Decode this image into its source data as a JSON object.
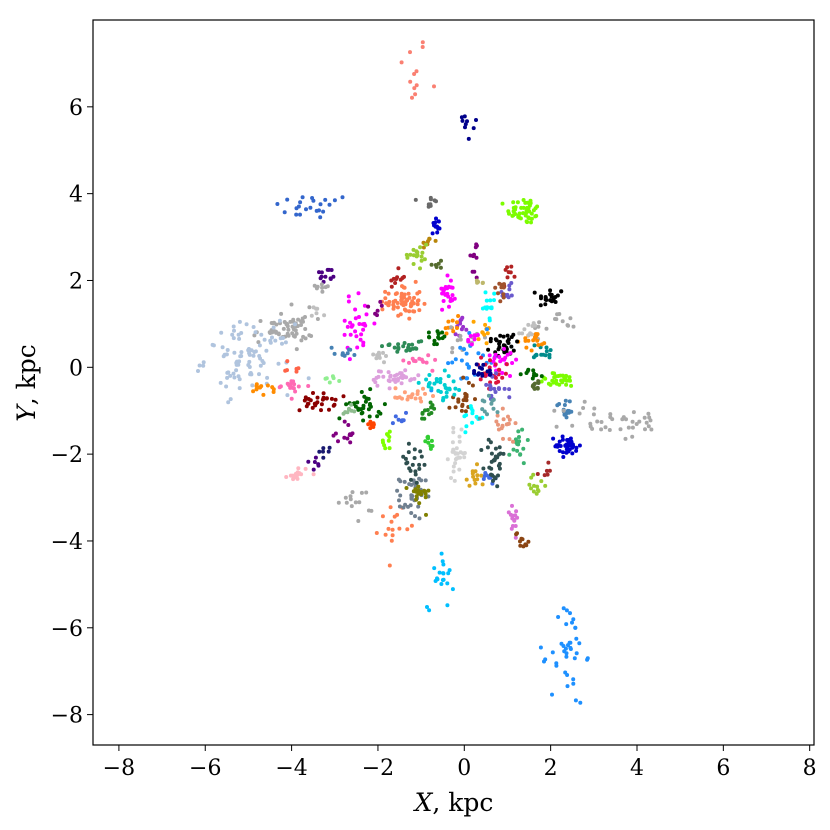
{
  "chart_data": {
    "type": "scatter",
    "title": "",
    "xlabel": {
      "var": "X",
      "unit": ", kpc"
    },
    "ylabel": {
      "var": "Y",
      "unit": ", kpc"
    },
    "xlim": [
      -8.6,
      8.1
    ],
    "ylim": [
      -8.7,
      8.0
    ],
    "xticks": [
      -8,
      -6,
      -4,
      -2,
      0,
      2,
      4,
      6,
      8
    ],
    "yticks": [
      -8,
      -6,
      -4,
      -2,
      0,
      2,
      4,
      6
    ],
    "xtick_labels": [
      "−8",
      "−6",
      "−4",
      "−2",
      "0",
      "2",
      "4",
      "6",
      "8"
    ],
    "ytick_labels": [
      "−8",
      "−6",
      "−4",
      "−2",
      "0",
      "2",
      "4",
      "6"
    ],
    "grid": false,
    "legend": "none",
    "clusters": [
      {
        "color": "#fa8072",
        "x": -1.2,
        "y": 6.8,
        "sx": 0.18,
        "sy": 0.45,
        "n": 12
      },
      {
        "color": "#00008b",
        "x": 0.05,
        "y": 5.6,
        "sx": 0.18,
        "sy": 0.2,
        "n": 9
      },
      {
        "color": "#3366cc",
        "x": -3.5,
        "y": 3.7,
        "sx": 0.45,
        "sy": 0.15,
        "n": 22
      },
      {
        "color": "#7cfc00",
        "x": 1.4,
        "y": 3.6,
        "sx": 0.2,
        "sy": 0.15,
        "n": 45
      },
      {
        "color": "#696969",
        "x": -0.8,
        "y": 3.8,
        "sx": 0.08,
        "sy": 0.12,
        "n": 10
      },
      {
        "color": "#0000cd",
        "x": -0.65,
        "y": 3.25,
        "sx": 0.07,
        "sy": 0.12,
        "n": 14
      },
      {
        "color": "#b8860b",
        "x": -0.85,
        "y": 2.9,
        "sx": 0.08,
        "sy": 0.08,
        "n": 8
      },
      {
        "color": "#9acd32",
        "x": -1.1,
        "y": 2.55,
        "sx": 0.15,
        "sy": 0.2,
        "n": 18
      },
      {
        "color": "#800080",
        "x": 0.25,
        "y": 2.5,
        "sx": 0.05,
        "sy": 0.25,
        "n": 10
      },
      {
        "color": "#556b2f",
        "x": -0.6,
        "y": 2.4,
        "sx": 0.1,
        "sy": 0.08,
        "n": 6
      },
      {
        "color": "#4b0082",
        "x": -3.2,
        "y": 2.1,
        "sx": 0.12,
        "sy": 0.1,
        "n": 12
      },
      {
        "color": "#a9a9a9",
        "x": -3.3,
        "y": 1.85,
        "sx": 0.1,
        "sy": 0.08,
        "n": 8
      },
      {
        "color": "#b22222",
        "x": 1.05,
        "y": 2.2,
        "sx": 0.08,
        "sy": 0.08,
        "n": 8
      },
      {
        "color": "#000000",
        "x": 2.0,
        "y": 1.6,
        "sx": 0.15,
        "sy": 0.12,
        "n": 22
      },
      {
        "color": "#a9a9a9",
        "x": 2.1,
        "y": 1.0,
        "sx": 0.25,
        "sy": 0.15,
        "n": 14
      },
      {
        "color": "#6a5acd",
        "x": 1.0,
        "y": 1.7,
        "sx": 0.1,
        "sy": 0.1,
        "n": 10
      },
      {
        "color": "#b22222",
        "x": -1.6,
        "y": 2.05,
        "sx": 0.12,
        "sy": 0.1,
        "n": 10
      },
      {
        "color": "#ff7f50",
        "x": -1.4,
        "y": 1.5,
        "sx": 0.2,
        "sy": 0.2,
        "n": 60
      },
      {
        "color": "#ff00ff",
        "x": -2.5,
        "y": 1.0,
        "sx": 0.2,
        "sy": 0.35,
        "n": 30
      },
      {
        "color": "#a9a9a9",
        "x": -3.7,
        "y": 1.1,
        "sx": 0.2,
        "sy": 0.2,
        "n": 10
      },
      {
        "color": "#c0c0c0",
        "x": -3.4,
        "y": 1.3,
        "sx": 0.1,
        "sy": 0.08,
        "n": 6
      },
      {
        "color": "#800080",
        "x": -2.1,
        "y": 1.35,
        "sx": 0.08,
        "sy": 0.08,
        "n": 6
      },
      {
        "color": "#a9a9a9",
        "x": -4.2,
        "y": 0.85,
        "sx": 0.35,
        "sy": 0.15,
        "n": 50
      },
      {
        "color": "#b0c4de",
        "x": -5.0,
        "y": 0.2,
        "sx": 0.5,
        "sy": 0.4,
        "n": 90
      },
      {
        "color": "#ff8c00",
        "x": -4.6,
        "y": -0.5,
        "sx": 0.2,
        "sy": 0.08,
        "n": 12
      },
      {
        "color": "#ff69b4",
        "x": -4.0,
        "y": -0.45,
        "sx": 0.2,
        "sy": 0.1,
        "n": 16
      },
      {
        "color": "#ff6347",
        "x": -3.9,
        "y": 0.0,
        "sx": 0.12,
        "sy": 0.08,
        "n": 6
      },
      {
        "color": "#4682b4",
        "x": -2.8,
        "y": 0.35,
        "sx": 0.15,
        "sy": 0.06,
        "n": 10
      },
      {
        "color": "#90ee90",
        "x": -3.0,
        "y": -0.25,
        "sx": 0.12,
        "sy": 0.06,
        "n": 6
      },
      {
        "color": "#8b0000",
        "x": -3.4,
        "y": -0.8,
        "sx": 0.2,
        "sy": 0.1,
        "n": 30
      },
      {
        "color": "#800080",
        "x": -2.8,
        "y": -1.55,
        "sx": 0.15,
        "sy": 0.15,
        "n": 12
      },
      {
        "color": "#191970",
        "x": -3.2,
        "y": -1.95,
        "sx": 0.1,
        "sy": 0.08,
        "n": 6
      },
      {
        "color": "#4b0082",
        "x": -3.5,
        "y": -2.2,
        "sx": 0.08,
        "sy": 0.08,
        "n": 6
      },
      {
        "color": "#ffb6c1",
        "x": -3.85,
        "y": -2.45,
        "sx": 0.12,
        "sy": 0.08,
        "n": 18
      },
      {
        "color": "#a9a9a9",
        "x": -2.5,
        "y": -3.1,
        "sx": 0.2,
        "sy": 0.2,
        "n": 14
      },
      {
        "color": "#ff7f50",
        "x": -1.65,
        "y": -3.6,
        "sx": 0.15,
        "sy": 0.25,
        "n": 16
      },
      {
        "color": "#708090",
        "x": -1.2,
        "y": -3.0,
        "sx": 0.15,
        "sy": 0.25,
        "n": 35
      },
      {
        "color": "#808000",
        "x": -1.05,
        "y": -2.95,
        "sx": 0.12,
        "sy": 0.15,
        "n": 20
      },
      {
        "color": "#2f4f4f",
        "x": -1.2,
        "y": -2.2,
        "sx": 0.2,
        "sy": 0.3,
        "n": 20
      },
      {
        "color": "#7fff00",
        "x": -1.8,
        "y": -1.7,
        "sx": 0.1,
        "sy": 0.1,
        "n": 10
      },
      {
        "color": "#32cd32",
        "x": -0.8,
        "y": -1.75,
        "sx": 0.08,
        "sy": 0.08,
        "n": 10
      },
      {
        "color": "#00bfff",
        "x": -0.55,
        "y": -4.75,
        "sx": 0.15,
        "sy": 0.4,
        "n": 20
      },
      {
        "color": "#d3d3d3",
        "x": -0.15,
        "y": -2.0,
        "sx": 0.1,
        "sy": 0.25,
        "n": 28
      },
      {
        "color": "#daa520",
        "x": 0.2,
        "y": -2.6,
        "sx": 0.1,
        "sy": 0.15,
        "n": 14
      },
      {
        "color": "#4169e1",
        "x": 0.55,
        "y": -2.55,
        "sx": 0.08,
        "sy": 0.08,
        "n": 10
      },
      {
        "color": "#2f4f4f",
        "x": 0.7,
        "y": -2.2,
        "sx": 0.12,
        "sy": 0.3,
        "n": 30
      },
      {
        "color": "#da70d6",
        "x": 1.1,
        "y": -3.4,
        "sx": 0.1,
        "sy": 0.2,
        "n": 14
      },
      {
        "color": "#8b4513",
        "x": 1.35,
        "y": -4.0,
        "sx": 0.08,
        "sy": 0.15,
        "n": 10
      },
      {
        "color": "#3cb371",
        "x": 1.25,
        "y": -1.8,
        "sx": 0.1,
        "sy": 0.2,
        "n": 16
      },
      {
        "color": "#9acd32",
        "x": 1.7,
        "y": -2.7,
        "sx": 0.1,
        "sy": 0.2,
        "n": 12
      },
      {
        "color": "#a52a2a",
        "x": 1.85,
        "y": -2.4,
        "sx": 0.06,
        "sy": 0.06,
        "n": 6
      },
      {
        "color": "#0000cd",
        "x": 2.4,
        "y": -1.8,
        "sx": 0.15,
        "sy": 0.12,
        "n": 35
      },
      {
        "color": "#4682b4",
        "x": 2.35,
        "y": -0.95,
        "sx": 0.12,
        "sy": 0.12,
        "n": 16
      },
      {
        "color": "#1e90ff",
        "x": 2.4,
        "y": -6.6,
        "sx": 0.2,
        "sy": 0.6,
        "n": 40
      },
      {
        "color": "#a9a9a9",
        "x": 3.5,
        "y": -1.25,
        "sx": 0.6,
        "sy": 0.22,
        "n": 40
      },
      {
        "color": "#7cfc00",
        "x": 2.2,
        "y": -0.3,
        "sx": 0.25,
        "sy": 0.08,
        "n": 30
      },
      {
        "color": "#556b2f",
        "x": 1.65,
        "y": -0.4,
        "sx": 0.12,
        "sy": 0.06,
        "n": 10
      },
      {
        "color": "#006400",
        "x": 1.6,
        "y": -0.15,
        "sx": 0.12,
        "sy": 0.06,
        "n": 10
      },
      {
        "color": "#008b8b",
        "x": 1.8,
        "y": 0.35,
        "sx": 0.15,
        "sy": 0.1,
        "n": 14
      },
      {
        "color": "#ff8c00",
        "x": 1.65,
        "y": 0.6,
        "sx": 0.15,
        "sy": 0.1,
        "n": 18
      },
      {
        "color": "#c0c0c0",
        "x": 1.5,
        "y": 0.85,
        "sx": 0.15,
        "sy": 0.1,
        "n": 10
      },
      {
        "color": "#000000",
        "x": 0.9,
        "y": 0.55,
        "sx": 0.2,
        "sy": 0.15,
        "n": 30
      },
      {
        "color": "#ff00ff",
        "x": -0.35,
        "y": 1.8,
        "sx": 0.08,
        "sy": 0.2,
        "n": 25
      },
      {
        "color": "#00ffff",
        "x": 0.55,
        "y": 1.4,
        "sx": 0.1,
        "sy": 0.15,
        "n": 14
      },
      {
        "color": "#a0522d",
        "x": 0.8,
        "y": 1.8,
        "sx": 0.12,
        "sy": 0.12,
        "n": 10
      },
      {
        "color": "#bdb76b",
        "x": 0.4,
        "y": 1.95,
        "sx": 0.06,
        "sy": 0.06,
        "n": 5
      },
      {
        "color": "#9932cc",
        "x": -0.1,
        "y": 1.0,
        "sx": 0.12,
        "sy": 0.12,
        "n": 14
      },
      {
        "color": "#ff8c00",
        "x": -0.3,
        "y": 0.95,
        "sx": 0.08,
        "sy": 0.15,
        "n": 10
      },
      {
        "color": "#006400",
        "x": -0.6,
        "y": 0.7,
        "sx": 0.12,
        "sy": 0.08,
        "n": 14
      },
      {
        "color": "#a9a9a9",
        "x": 0.0,
        "y": 0.6,
        "sx": 0.15,
        "sy": 0.2,
        "n": 14
      },
      {
        "color": "#ffa500",
        "x": 0.45,
        "y": 0.9,
        "sx": 0.1,
        "sy": 0.15,
        "n": 10
      },
      {
        "color": "#1e90ff",
        "x": 0.2,
        "y": 0.1,
        "sx": 0.3,
        "sy": 0.3,
        "n": 25
      },
      {
        "color": "#ff00ff",
        "x": 0.9,
        "y": 0.2,
        "sx": 0.2,
        "sy": 0.15,
        "n": 22
      },
      {
        "color": "#dc143c",
        "x": 0.6,
        "y": -0.2,
        "sx": 0.2,
        "sy": 0.2,
        "n": 22
      },
      {
        "color": "#6a5acd",
        "x": 0.7,
        "y": -0.5,
        "sx": 0.15,
        "sy": 0.15,
        "n": 18
      },
      {
        "color": "#8b4513",
        "x": -0.05,
        "y": -0.7,
        "sx": 0.15,
        "sy": 0.2,
        "n": 20
      },
      {
        "color": "#00ced1",
        "x": -0.5,
        "y": -0.45,
        "sx": 0.25,
        "sy": 0.15,
        "n": 30
      },
      {
        "color": "#dda0dd",
        "x": -1.6,
        "y": -0.25,
        "sx": 0.3,
        "sy": 0.1,
        "n": 40
      },
      {
        "color": "#2e8b57",
        "x": -1.4,
        "y": 0.5,
        "sx": 0.25,
        "sy": 0.08,
        "n": 22
      },
      {
        "color": "#ff69b4",
        "x": -1.05,
        "y": 0.15,
        "sx": 0.15,
        "sy": 0.08,
        "n": 12
      },
      {
        "color": "#c0c0c0",
        "x": -2.0,
        "y": 0.25,
        "sx": 0.15,
        "sy": 0.06,
        "n": 10
      },
      {
        "color": "#006400",
        "x": -2.3,
        "y": -0.9,
        "sx": 0.2,
        "sy": 0.15,
        "n": 30
      },
      {
        "color": "#8fbc8f",
        "x": -2.6,
        "y": -0.95,
        "sx": 0.1,
        "sy": 0.08,
        "n": 8
      },
      {
        "color": "#ffa07a",
        "x": -1.3,
        "y": -0.65,
        "sx": 0.2,
        "sy": 0.12,
        "n": 20
      },
      {
        "color": "#228b22",
        "x": -0.85,
        "y": -1.05,
        "sx": 0.12,
        "sy": 0.1,
        "n": 12
      },
      {
        "color": "#ff4500",
        "x": -2.1,
        "y": -1.35,
        "sx": 0.1,
        "sy": 0.06,
        "n": 8
      },
      {
        "color": "#4169e1",
        "x": -1.5,
        "y": -1.25,
        "sx": 0.1,
        "sy": 0.08,
        "n": 8
      },
      {
        "color": "#e9967a",
        "x": 0.95,
        "y": -1.3,
        "sx": 0.12,
        "sy": 0.25,
        "n": 18
      },
      {
        "color": "#00ffff",
        "x": 0.2,
        "y": -1.1,
        "sx": 0.15,
        "sy": 0.15,
        "n": 12
      },
      {
        "color": "#5f9ea0",
        "x": 0.55,
        "y": -0.85,
        "sx": 0.12,
        "sy": 0.15,
        "n": 12
      },
      {
        "color": "#ff00ff",
        "x": 0.15,
        "y": 0.6,
        "sx": 0.1,
        "sy": 0.08,
        "n": 8
      },
      {
        "color": "#00008b",
        "x": 0.45,
        "y": -0.1,
        "sx": 0.12,
        "sy": 0.12,
        "n": 14
      }
    ]
  }
}
